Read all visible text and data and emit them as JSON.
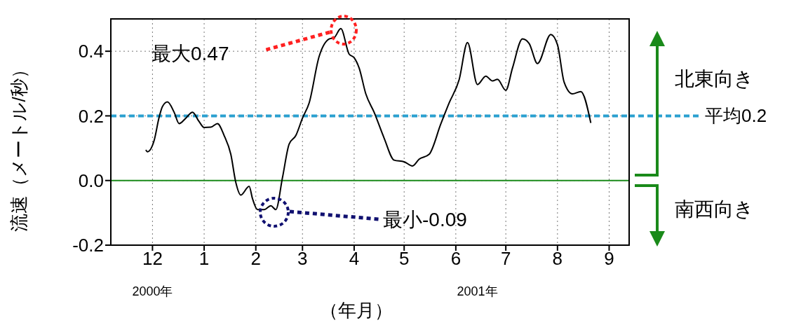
{
  "chart_data": {
    "type": "line",
    "ylabel": "流速（メートル/秒）",
    "xlabel": "（年月）",
    "x": [
      "2000-11-27",
      "2000-11-28",
      "2000-12-02",
      "2000-12-05",
      "2000-12-07",
      "2000-12-10",
      "2000-12-14",
      "2000-12-17",
      "2000-12-21",
      "2000-12-25",
      "2000-12-29",
      "2001-01-01",
      "2001-01-05",
      "2001-01-09",
      "2001-01-13",
      "2001-01-17",
      "2001-01-20",
      "2001-01-23",
      "2001-01-28",
      "2001-01-30",
      "2001-02-02",
      "2001-02-06",
      "2001-02-10",
      "2001-02-13",
      "2001-02-17",
      "2001-02-21",
      "2001-02-25",
      "2001-03-01",
      "2001-03-05",
      "2001-03-11",
      "2001-03-17",
      "2001-03-20",
      "2001-03-24",
      "2001-03-29",
      "2001-04-01",
      "2001-04-04",
      "2001-04-08",
      "2001-04-13",
      "2001-04-19",
      "2001-04-25",
      "2001-05-01",
      "2001-05-06",
      "2001-05-10",
      "2001-05-16",
      "2001-05-23",
      "2001-05-28",
      "2001-06-03",
      "2001-06-08",
      "2001-06-14",
      "2001-06-19",
      "2001-06-23",
      "2001-06-26",
      "2001-07-01",
      "2001-07-05",
      "2001-07-11",
      "2001-07-15",
      "2001-07-20",
      "2001-07-28",
      "2001-08-01",
      "2001-08-05",
      "2001-08-10",
      "2001-08-15",
      "2001-08-21"
    ],
    "series": [
      {
        "color": "#000000",
        "values": [
          0.095,
          0.089,
          0.124,
          0.196,
          0.229,
          0.243,
          0.211,
          0.176,
          0.193,
          0.211,
          0.182,
          0.164,
          0.165,
          0.176,
          0.139,
          0.081,
          -0.006,
          -0.045,
          -0.018,
          -0.056,
          -0.09,
          -0.09,
          -0.078,
          -0.09,
          0.009,
          0.113,
          0.139,
          0.193,
          0.24,
          0.384,
          0.438,
          0.442,
          0.47,
          0.391,
          0.38,
          0.348,
          0.268,
          0.211,
          0.131,
          0.063,
          0.058,
          0.045,
          0.066,
          0.081,
          0.175,
          0.24,
          0.312,
          0.427,
          0.297,
          0.323,
          0.308,
          0.313,
          0.279,
          0.348,
          0.438,
          0.424,
          0.362,
          0.452,
          0.42,
          0.304,
          0.268,
          0.275,
          0.178
        ]
      }
    ],
    "xlim": [
      "2000-11-06",
      "2001-09-13"
    ],
    "xticks": [
      {
        "value": "2000-12-01",
        "label": "12"
      },
      {
        "value": "2001-01-01",
        "label": "1"
      },
      {
        "value": "2001-02-01",
        "label": "2"
      },
      {
        "value": "2001-03-01",
        "label": "3"
      },
      {
        "value": "2001-04-01",
        "label": "4"
      },
      {
        "value": "2001-05-01",
        "label": "5"
      },
      {
        "value": "2001-06-01",
        "label": "6"
      },
      {
        "value": "2001-07-01",
        "label": "7"
      },
      {
        "value": "2001-08-01",
        "label": "8"
      },
      {
        "value": "2001-09-01",
        "label": "9"
      }
    ],
    "ylim": [
      -0.2,
      0.5
    ],
    "yticks": [
      -0.2,
      {
        "value": 0,
        "label": "0.0"
      },
      0.2,
      0.4
    ],
    "grid": true,
    "ref_lines": [
      {
        "axis": "y",
        "value": 0,
        "color": "#1a8a1a",
        "line_style": "solid"
      },
      {
        "axis": "y",
        "value": 0.2,
        "label": "平均0.2",
        "color": "#2aa0d0",
        "line_style": "dashed"
      }
    ],
    "annotations": [
      "北東向き",
      "南西向き",
      "2000年",
      "2001年",
      "最大0.47",
      "最小-0.09"
    ]
  }
}
